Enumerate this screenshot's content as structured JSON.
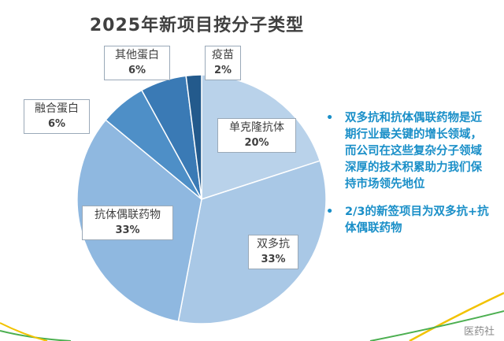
{
  "chart_data": {
    "type": "pie",
    "title": "2025年新项目按分子类型",
    "slices": [
      {
        "label": "单克隆抗体",
        "value": 20,
        "pct_label": "20%",
        "color": "#b9d2ea"
      },
      {
        "label": "双多抗",
        "value": 33,
        "pct_label": "33%",
        "color": "#a9c8e6"
      },
      {
        "label": "抗体偶联药物",
        "value": 33,
        "pct_label": "33%",
        "color": "#8fb8e0"
      },
      {
        "label": "融合蛋白",
        "value": 6,
        "pct_label": "6%",
        "color": "#4e8fc7"
      },
      {
        "label": "其他蛋白",
        "value": 6,
        "pct_label": "6%",
        "color": "#3a7ab5"
      },
      {
        "label": "疫苗",
        "value": 2,
        "pct_label": "2%",
        "color": "#235a8c"
      }
    ]
  },
  "notes": [
    "双多抗和抗体偶联药物是近期行业最关键的增长领域，而公司在这些复杂分子领域深厚的技术积累助力我们保持市场领先地位",
    "2/3的新签项目为双多抗+抗体偶联药物"
  ],
  "watermark": "医药社"
}
